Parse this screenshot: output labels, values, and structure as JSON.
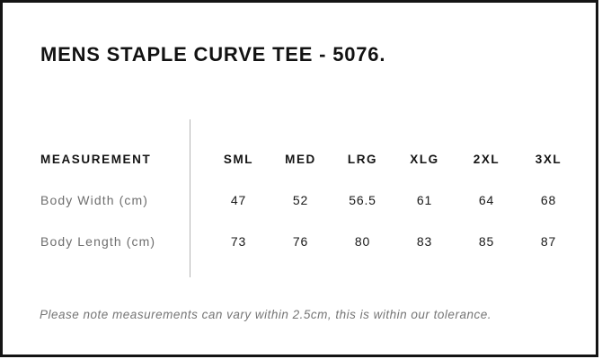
{
  "page": {
    "title": "MENS STAPLE CURVE TEE - 5076."
  },
  "table": {
    "header_label": "MEASUREMENT",
    "columns": [
      "SML",
      "MED",
      "LRG",
      "XLG",
      "2XL",
      "3XL"
    ],
    "rows": [
      {
        "label": "Body Width (cm)",
        "values": [
          "47",
          "52",
          "56.5",
          "61",
          "64",
          "68"
        ]
      },
      {
        "label": "Body Length (cm)",
        "values": [
          "73",
          "76",
          "80",
          "83",
          "85",
          "87"
        ]
      }
    ]
  },
  "note": "Please note measurements can vary within 2.5cm, this is within our tolerance.",
  "colors": {
    "border": "#141414",
    "text_primary": "#141414",
    "text_values": "#181818",
    "text_secondary": "#6e6e6e",
    "note_text": "#757575",
    "divider": "#b5b5b5",
    "background": "#ffffff"
  }
}
